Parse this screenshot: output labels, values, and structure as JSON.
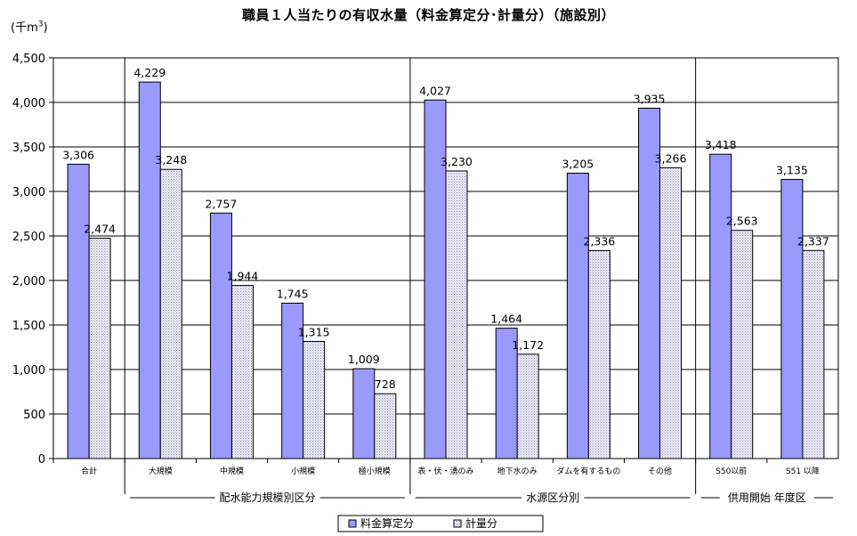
{
  "chart_data": {
    "type": "bar",
    "title": "職員１人当たりの有収水量（料金算定分･計量分）（施設別）",
    "unit": {
      "main": "(千m",
      "sup": "3",
      "close": ")"
    },
    "ylim": [
      0,
      4500
    ],
    "yticks": [
      "0",
      "500",
      "1,000",
      "1,500",
      "2,000",
      "2,500",
      "3,000",
      "3,500",
      "4,000",
      "4,500"
    ],
    "grid": true,
    "legend_position": "bottom",
    "categories": [
      "合計",
      "大規模",
      "中規模",
      "小規模",
      "極小規模",
      "表・伏・湧のみ",
      "地下水のみ",
      "ダムを有するもの",
      "その他",
      "S50以前",
      "S51 以降"
    ],
    "groups": [
      {
        "label": "配水能力規模別区分",
        "start": 1,
        "end": 4
      },
      {
        "label": "水源区分別",
        "start": 5,
        "end": 8
      },
      {
        "label": "供用開始 年度区",
        "start": 9,
        "end": 10
      }
    ],
    "series": [
      {
        "name": "料金算定分",
        "color": "#9999ff",
        "values": [
          3306,
          4229,
          2757,
          1745,
          1009,
          4027,
          1464,
          3205,
          3935,
          3418,
          3135
        ],
        "labels": [
          "3,306",
          "4,229",
          "2,757",
          "1,745",
          "1,009",
          "4,027",
          "1,464",
          "3,205",
          "3,935",
          "3,418",
          "3,135"
        ]
      },
      {
        "name": "計量分",
        "color": "#e6e6f5",
        "values": [
          2474,
          3248,
          1944,
          1315,
          728,
          3230,
          1172,
          2336,
          3266,
          2563,
          2337
        ],
        "labels": [
          "2,474",
          "3,248",
          "1,944",
          "1,315",
          "728",
          "3,230",
          "1,172",
          "2,336",
          "3,266",
          "2,563",
          "2,337"
        ]
      }
    ]
  }
}
